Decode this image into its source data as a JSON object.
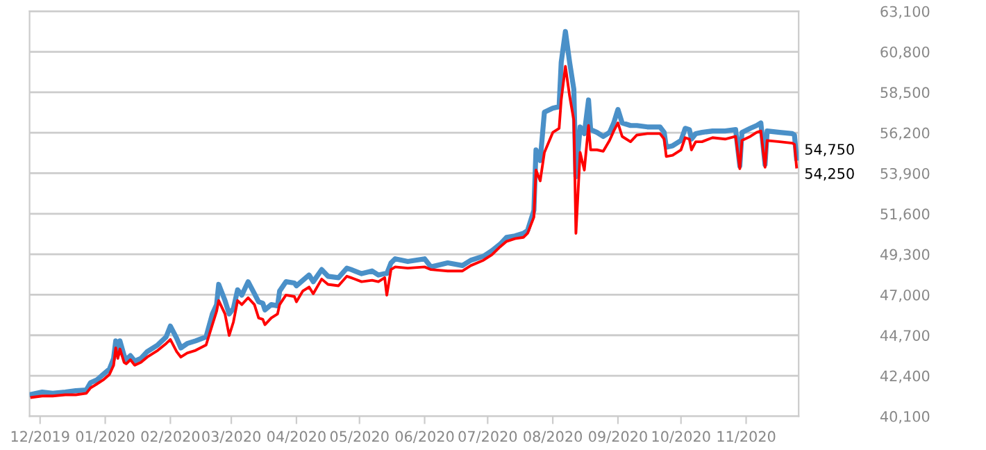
{
  "chart_data": {
    "type": "line",
    "x": [
      "2019-11-27",
      "2019-12-02",
      "2019-12-07",
      "2019-12-13",
      "2019-12-18",
      "2019-12-23",
      "2019-12-25",
      "2019-12-28",
      "2019-12-31",
      "2020-01-03",
      "2020-01-05",
      "2020-01-06",
      "2020-01-07",
      "2020-01-08",
      "2020-01-10",
      "2020-01-11",
      "2020-01-13",
      "2020-01-15",
      "2020-01-18",
      "2020-01-21",
      "2020-01-26",
      "2020-01-30",
      "2020-02-01",
      "2020-02-04",
      "2020-02-06",
      "2020-02-09",
      "2020-02-13",
      "2020-02-18",
      "2020-02-21",
      "2020-02-23",
      "2020-02-24",
      "2020-02-27",
      "2020-02-29",
      "2020-03-02",
      "2020-03-04",
      "2020-03-06",
      "2020-03-09",
      "2020-03-12",
      "2020-03-14",
      "2020-03-16",
      "2020-03-17",
      "2020-03-20",
      "2020-03-23",
      "2020-03-24",
      "2020-03-27",
      "2020-03-31",
      "2020-04-01",
      "2020-04-04",
      "2020-04-07",
      "2020-04-09",
      "2020-04-13",
      "2020-04-16",
      "2020-04-21",
      "2020-04-25",
      "2020-04-27",
      "2020-05-02",
      "2020-05-07",
      "2020-05-10",
      "2020-05-13",
      "2020-05-14",
      "2020-05-16",
      "2020-05-18",
      "2020-05-24",
      "2020-06-01",
      "2020-06-04",
      "2020-06-12",
      "2020-06-19",
      "2020-06-23",
      "2020-06-29",
      "2020-07-03",
      "2020-07-07",
      "2020-07-10",
      "2020-07-14",
      "2020-07-18",
      "2020-07-20",
      "2020-07-23",
      "2020-07-24",
      "2020-07-26",
      "2020-07-28",
      "2020-08-01",
      "2020-08-04",
      "2020-08-05",
      "2020-08-07",
      "2020-08-09",
      "2020-08-11",
      "2020-08-12",
      "2020-08-14",
      "2020-08-16",
      "2020-08-18",
      "2020-08-19",
      "2020-08-22",
      "2020-08-25",
      "2020-08-28",
      "2020-08-30",
      "2020-09-01",
      "2020-09-03",
      "2020-09-07",
      "2020-09-10",
      "2020-09-15",
      "2020-09-21",
      "2020-09-23",
      "2020-09-24",
      "2020-09-27",
      "2020-10-01",
      "2020-10-03",
      "2020-10-05",
      "2020-10-06",
      "2020-10-08",
      "2020-10-11",
      "2020-10-16",
      "2020-10-22",
      "2020-10-27",
      "2020-10-29",
      "2020-10-30",
      "2020-11-03",
      "2020-11-06",
      "2020-11-08",
      "2020-11-10",
      "2020-11-11",
      "2020-11-17",
      "2020-11-23",
      "2020-11-24",
      "2020-11-25"
    ],
    "series": [
      {
        "color": "#4a90c8",
        "values": [
          41350,
          41470,
          41400,
          41470,
          41550,
          41590,
          42010,
          42160,
          42470,
          42780,
          43390,
          44380,
          43620,
          44380,
          43540,
          43310,
          43540,
          43230,
          43390,
          43770,
          44150,
          44610,
          45220,
          44530,
          43980,
          44230,
          44380,
          44610,
          45910,
          46440,
          47590,
          46670,
          45910,
          46220,
          47280,
          46980,
          47740,
          47060,
          46600,
          46520,
          46140,
          46440,
          46370,
          47210,
          47740,
          47670,
          47510,
          47820,
          48120,
          47740,
          48430,
          48050,
          47970,
          48510,
          48430,
          48200,
          48350,
          48120,
          48200,
          48200,
          48810,
          49040,
          48890,
          49040,
          48580,
          48810,
          48660,
          48960,
          49190,
          49500,
          49880,
          50260,
          50340,
          50490,
          50650,
          51790,
          55230,
          54620,
          57370,
          57600,
          57680,
          60200,
          61950,
          60200,
          58670,
          53700,
          56530,
          56150,
          58060,
          56380,
          56220,
          55990,
          56220,
          56760,
          57520,
          56760,
          56610,
          56610,
          56530,
          56530,
          56220,
          55380,
          55460,
          55760,
          56450,
          56380,
          55840,
          56150,
          56220,
          56300,
          56300,
          56380,
          54310,
          56220,
          56450,
          56610,
          56760,
          54390,
          56300,
          56220,
          56150,
          56070,
          54750
        ]
      },
      {
        "color": "#ff0000",
        "values": [
          41170,
          41250,
          41250,
          41320,
          41320,
          41400,
          41710,
          41930,
          42160,
          42470,
          43000,
          43980,
          43390,
          43920,
          43160,
          43080,
          43310,
          43000,
          43160,
          43460,
          43840,
          44230,
          44460,
          43770,
          43460,
          43690,
          43840,
          44150,
          45300,
          46060,
          46670,
          45910,
          44690,
          45450,
          46670,
          46440,
          46830,
          46440,
          45680,
          45600,
          45300,
          45680,
          45910,
          46440,
          46980,
          46900,
          46600,
          47210,
          47440,
          47060,
          47890,
          47590,
          47510,
          48050,
          47970,
          47740,
          47820,
          47740,
          47970,
          46980,
          48430,
          48580,
          48510,
          48580,
          48430,
          48350,
          48350,
          48660,
          48960,
          49270,
          49730,
          50030,
          50190,
          50260,
          50490,
          51410,
          54080,
          53470,
          55080,
          56220,
          56450,
          58060,
          59970,
          58290,
          56910,
          50490,
          55080,
          54080,
          56610,
          55230,
          55230,
          55150,
          55760,
          56300,
          56760,
          55990,
          55690,
          56070,
          56150,
          56150,
          55840,
          54850,
          54920,
          55230,
          55920,
          55840,
          55230,
          55690,
          55690,
          55920,
          55840,
          55990,
          54160,
          55760,
          55990,
          56220,
          56300,
          54240,
          55760,
          55690,
          55610,
          55540,
          54250
        ]
      }
    ],
    "xlim": [
      "2019-11-26",
      "2020-11-26"
    ],
    "xticks": [
      {
        "value": "2019-12-01",
        "label": "12/2019"
      },
      {
        "value": "2020-01-01",
        "label": "01/2020"
      },
      {
        "value": "2020-02-01",
        "label": "02/2020"
      },
      {
        "value": "2020-03-01",
        "label": "03/2020"
      },
      {
        "value": "2020-04-01",
        "label": "04/2020"
      },
      {
        "value": "2020-05-01",
        "label": "05/2020"
      },
      {
        "value": "2020-06-01",
        "label": "06/2020"
      },
      {
        "value": "2020-07-01",
        "label": "07/2020"
      },
      {
        "value": "2020-08-01",
        "label": "08/2020"
      },
      {
        "value": "2020-09-01",
        "label": "09/2020"
      },
      {
        "value": "2020-10-01",
        "label": "10/2020"
      },
      {
        "value": "2020-11-01",
        "label": "11/2020"
      }
    ],
    "ylim": [
      40100,
      63100
    ],
    "yticks": [
      {
        "value": 40100,
        "label": "40,100"
      },
      {
        "value": 42400,
        "label": "42,400"
      },
      {
        "value": 44700,
        "label": "44,700"
      },
      {
        "value": 47000,
        "label": "47,000"
      },
      {
        "value": 49300,
        "label": "49,300"
      },
      {
        "value": 51600,
        "label": "51,600"
      },
      {
        "value": 53900,
        "label": "53,900"
      },
      {
        "value": 56200,
        "label": "56,200"
      },
      {
        "value": 58500,
        "label": "58,500"
      },
      {
        "value": 60800,
        "label": "60,800"
      },
      {
        "value": 63100,
        "label": "63,100"
      }
    ],
    "grid": "y",
    "annotations": [
      {
        "text": "54,750",
        "x": "2020-11-25",
        "y": 54750
      },
      {
        "text": "54,250",
        "x": "2020-11-25",
        "y": 54250
      }
    ]
  }
}
